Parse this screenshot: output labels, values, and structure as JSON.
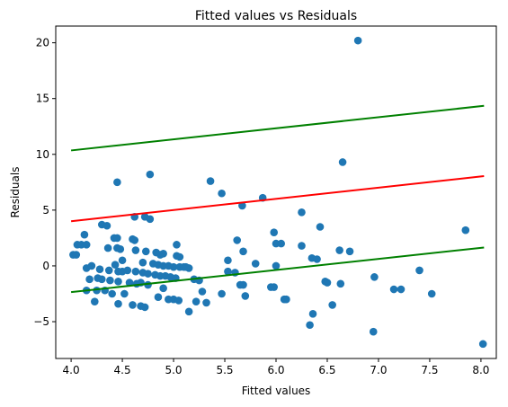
{
  "chart_data": {
    "type": "scatter",
    "title": "Fitted values vs Residuals",
    "xlabel": "Fitted values",
    "ylabel": "Residuals",
    "xlim": [
      3.85,
      8.15
    ],
    "ylim": [
      -8.3,
      21.5
    ],
    "x_ticks": [
      4.0,
      4.5,
      5.0,
      5.5,
      6.0,
      6.5,
      7.0,
      7.5,
      8.0
    ],
    "x_tick_labels": [
      "4.0",
      "4.5",
      "5.0",
      "5.5",
      "6.0",
      "6.5",
      "7.0",
      "7.5",
      "8.0"
    ],
    "y_ticks": [
      -5,
      0,
      5,
      10,
      15,
      20
    ],
    "y_tick_labels": [
      "−5",
      "0",
      "5",
      "10",
      "15",
      "20"
    ],
    "grid": false,
    "point_color": "#1f77b4",
    "points": [
      [
        4.02,
        1.0
      ],
      [
        4.05,
        1.0
      ],
      [
        4.06,
        1.9
      ],
      [
        4.1,
        1.9
      ],
      [
        4.13,
        2.8
      ],
      [
        4.15,
        1.9
      ],
      [
        4.15,
        -0.2
      ],
      [
        4.15,
        -2.2
      ],
      [
        4.18,
        -1.2
      ],
      [
        4.2,
        0.0
      ],
      [
        4.23,
        -3.2
      ],
      [
        4.25,
        -2.2
      ],
      [
        4.26,
        -1.1
      ],
      [
        4.28,
        -0.3
      ],
      [
        4.3,
        3.7
      ],
      [
        4.3,
        -1.2
      ],
      [
        4.33,
        -2.2
      ],
      [
        4.35,
        3.6
      ],
      [
        4.36,
        1.6
      ],
      [
        4.37,
        -0.4
      ],
      [
        4.38,
        -1.3
      ],
      [
        4.4,
        -2.5
      ],
      [
        4.42,
        2.5
      ],
      [
        4.43,
        0.1
      ],
      [
        4.45,
        7.5
      ],
      [
        4.45,
        2.5
      ],
      [
        4.45,
        1.6
      ],
      [
        4.46,
        -0.5
      ],
      [
        4.46,
        -1.4
      ],
      [
        4.46,
        -3.4
      ],
      [
        4.48,
        1.5
      ],
      [
        4.5,
        0.5
      ],
      [
        4.5,
        -0.5
      ],
      [
        4.52,
        -2.5
      ],
      [
        4.55,
        -0.4
      ],
      [
        4.57,
        -1.5
      ],
      [
        4.6,
        2.4
      ],
      [
        4.6,
        -3.5
      ],
      [
        4.62,
        4.4
      ],
      [
        4.62,
        2.3
      ],
      [
        4.63,
        1.4
      ],
      [
        4.63,
        -0.5
      ],
      [
        4.64,
        -1.6
      ],
      [
        4.68,
        -1.5
      ],
      [
        4.68,
        -3.6
      ],
      [
        4.7,
        0.3
      ],
      [
        4.7,
        -0.6
      ],
      [
        4.72,
        4.4
      ],
      [
        4.72,
        -3.7
      ],
      [
        4.73,
        1.3
      ],
      [
        4.75,
        -1.7
      ],
      [
        4.75,
        -0.7
      ],
      [
        4.77,
        8.2
      ],
      [
        4.77,
        4.2
      ],
      [
        4.8,
        0.2
      ],
      [
        4.82,
        -0.8
      ],
      [
        4.83,
        1.2
      ],
      [
        4.85,
        0.1
      ],
      [
        4.85,
        -2.8
      ],
      [
        4.87,
        1.0
      ],
      [
        4.87,
        -0.9
      ],
      [
        4.9,
        1.1
      ],
      [
        4.9,
        0.0
      ],
      [
        4.9,
        -2.0
      ],
      [
        4.92,
        -0.9
      ],
      [
        4.95,
        0.0
      ],
      [
        4.95,
        -3.0
      ],
      [
        4.97,
        -1.0
      ],
      [
        5.0,
        -0.1
      ],
      [
        5.0,
        -3.0
      ],
      [
        5.02,
        -1.1
      ],
      [
        5.03,
        1.9
      ],
      [
        5.03,
        0.9
      ],
      [
        5.05,
        -3.1
      ],
      [
        5.06,
        0.8
      ],
      [
        5.06,
        -0.1
      ],
      [
        5.1,
        -0.1
      ],
      [
        5.12,
        -0.1
      ],
      [
        5.15,
        -4.1
      ],
      [
        5.15,
        -0.2
      ],
      [
        5.2,
        -1.2
      ],
      [
        5.22,
        -3.2
      ],
      [
        5.25,
        -1.3
      ],
      [
        5.28,
        -2.3
      ],
      [
        5.32,
        -3.3
      ],
      [
        5.36,
        7.6
      ],
      [
        5.47,
        6.5
      ],
      [
        5.47,
        -2.5
      ],
      [
        5.53,
        0.5
      ],
      [
        5.53,
        -0.5
      ],
      [
        5.6,
        -0.6
      ],
      [
        5.62,
        2.3
      ],
      [
        5.65,
        -1.7
      ],
      [
        5.67,
        5.4
      ],
      [
        5.68,
        1.3
      ],
      [
        5.68,
        -1.7
      ],
      [
        5.7,
        -2.7
      ],
      [
        5.8,
        0.2
      ],
      [
        5.87,
        6.1
      ],
      [
        5.95,
        -1.9
      ],
      [
        5.98,
        3.0
      ],
      [
        5.98,
        -1.9
      ],
      [
        6.0,
        2.0
      ],
      [
        6.0,
        0.0
      ],
      [
        6.05,
        2.0
      ],
      [
        6.08,
        -3.0
      ],
      [
        6.1,
        -3.0
      ],
      [
        6.25,
        4.8
      ],
      [
        6.25,
        1.8
      ],
      [
        6.33,
        -5.3
      ],
      [
        6.35,
        0.7
      ],
      [
        6.36,
        -4.3
      ],
      [
        6.4,
        0.6
      ],
      [
        6.43,
        3.5
      ],
      [
        6.48,
        -1.4
      ],
      [
        6.5,
        -1.5
      ],
      [
        6.55,
        -3.5
      ],
      [
        6.62,
        1.4
      ],
      [
        6.63,
        -1.6
      ],
      [
        6.65,
        9.3
      ],
      [
        6.72,
        1.3
      ],
      [
        6.8,
        20.2
      ],
      [
        6.95,
        -5.9
      ],
      [
        6.96,
        -1.0
      ],
      [
        7.15,
        -2.1
      ],
      [
        7.22,
        -2.1
      ],
      [
        7.4,
        -0.4
      ],
      [
        7.52,
        -2.5
      ],
      [
        7.85,
        3.2
      ],
      [
        8.02,
        -7.0
      ]
    ],
    "lines": [
      {
        "color": "#008000",
        "x": [
          4.0,
          8.03
        ],
        "y": [
          10.35,
          14.35
        ]
      },
      {
        "color": "#ff0000",
        "x": [
          4.0,
          8.03
        ],
        "y": [
          4.0,
          8.05
        ]
      },
      {
        "color": "#008000",
        "x": [
          4.0,
          8.03
        ],
        "y": [
          -2.35,
          1.65
        ]
      }
    ]
  }
}
